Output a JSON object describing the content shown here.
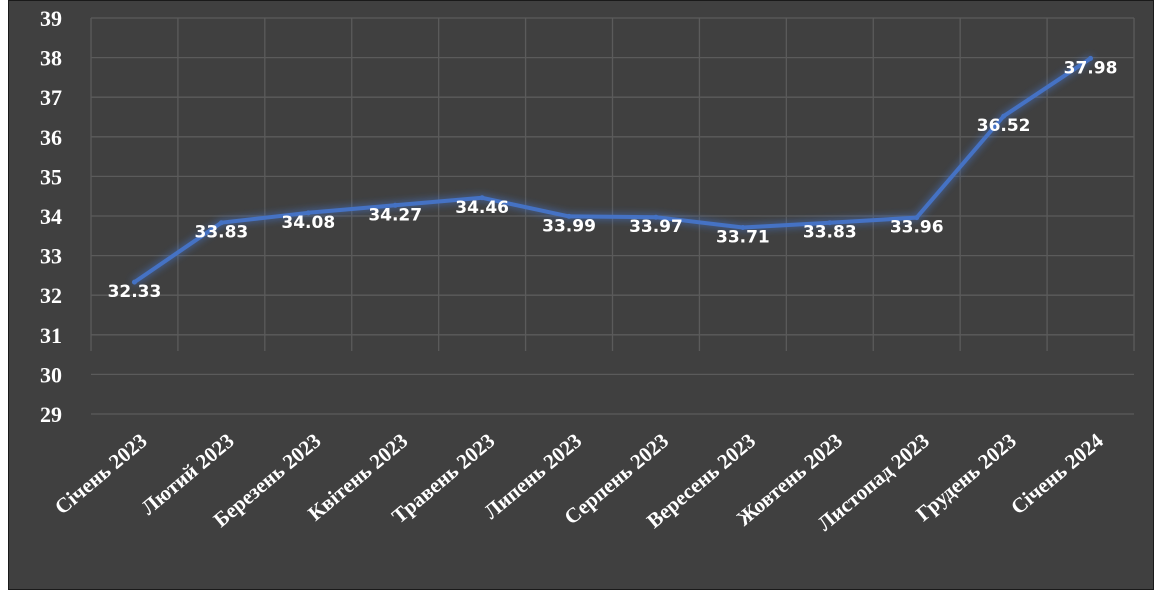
{
  "chart_data": {
    "type": "line",
    "title": "",
    "xlabel": "",
    "ylabel": "",
    "categories": [
      "Січень 2023",
      "Лютий 2023",
      "Березень 2023",
      "Квітень 2023",
      "Травень 2023",
      "Липень 2023",
      "Серпень 2023",
      "Вересень 2023",
      "Жовтень 2023",
      "Листопад 2023",
      "Грудень 2023",
      "Січень 2024"
    ],
    "series": [
      {
        "values": [
          32.33,
          33.83,
          34.08,
          34.27,
          34.46,
          33.99,
          33.97,
          33.71,
          33.83,
          33.96,
          36.52,
          37.98
        ]
      }
    ],
    "data_labels": [
      "32.33",
      "33.83",
      "34.08",
      "34.27",
      "34.46",
      "33.99",
      "33.97",
      "33.71",
      "33.83",
      "33.96",
      "36.52",
      "37.98"
    ],
    "ylim": [
      29,
      39
    ],
    "yticks": [
      "29",
      "30",
      "31",
      "32",
      "33",
      "34",
      "35",
      "36",
      "37",
      "38",
      "39"
    ],
    "grid": true,
    "legend": "none",
    "colors": {
      "background": "#404040",
      "line": "#4472c4",
      "text": "#ffffff",
      "grid": "#5b5b5b"
    }
  }
}
